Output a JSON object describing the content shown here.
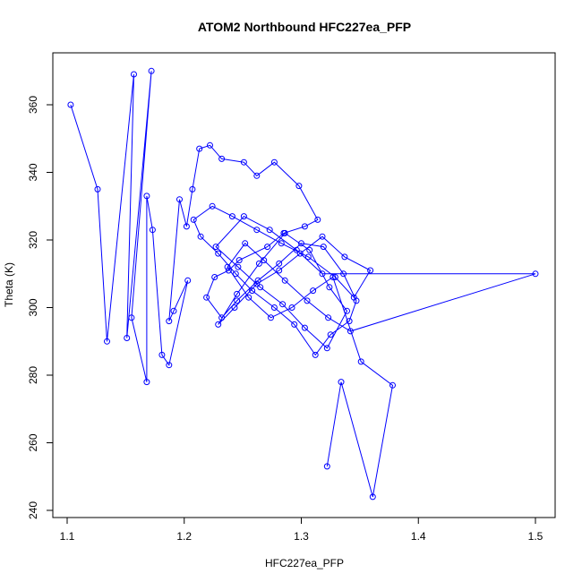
{
  "chart_data": {
    "type": "line",
    "title": "ATOM2 Northbound HFC227ea_PFP",
    "xlabel": "HFC227ea_PFP",
    "ylabel": "Theta (K)",
    "xlim": [
      1.1,
      1.5
    ],
    "ylim": [
      240,
      360
    ],
    "xticks": [
      1.1,
      1.2,
      1.3,
      1.4,
      1.5
    ],
    "xtick_labels": [
      "1.1",
      "1.2",
      "1.3",
      "1.4",
      "1.5"
    ],
    "yticks": [
      240,
      260,
      280,
      300,
      320,
      340,
      360
    ],
    "ytick_labels": [
      "240",
      "260",
      "280",
      "300",
      "320",
      "340",
      "360"
    ],
    "grid": false,
    "series": [
      {
        "color": "#0000ff",
        "marker": "open-circle",
        "x": [
          1.103,
          1.126,
          1.134,
          1.157,
          1.151,
          1.172,
          1.155,
          1.168,
          1.168,
          1.173,
          1.181,
          1.187,
          1.203,
          1.191,
          1.187,
          1.196,
          1.202,
          1.207,
          1.213,
          1.222,
          1.232,
          1.251,
          1.262,
          1.277,
          1.298,
          1.314,
          1.303,
          1.285,
          1.271,
          1.247,
          1.238,
          1.226,
          1.219,
          1.232,
          1.245,
          1.263,
          1.281,
          1.3,
          1.319,
          1.336,
          1.347,
          1.341,
          1.325,
          1.312,
          1.294,
          1.277,
          1.258,
          1.244,
          1.229,
          1.214,
          1.208,
          1.224,
          1.241,
          1.262,
          1.283,
          1.306,
          1.329,
          1.345,
          1.359,
          1.337,
          1.318,
          1.299,
          1.281,
          1.262,
          1.243,
          1.229,
          1.245,
          1.264,
          1.286,
          1.307,
          1.324,
          1.339,
          1.322,
          1.303,
          1.284,
          1.265,
          1.246,
          1.227,
          1.251,
          1.273,
          1.296,
          1.318,
          1.5,
          1.342,
          1.323,
          1.305,
          1.286,
          1.268,
          1.252,
          1.237,
          1.255,
          1.274,
          1.292,
          1.31,
          1.327,
          1.351,
          1.378,
          1.361,
          1.334,
          1.322
        ],
        "y": [
          360,
          335,
          290,
          369,
          291,
          370,
          297,
          278,
          333,
          323,
          286,
          283,
          308,
          299,
          296,
          332,
          324,
          335,
          347,
          348,
          344,
          343,
          339,
          343,
          336,
          326,
          324,
          322,
          318,
          314,
          311,
          309,
          303,
          297,
          302,
          308,
          313,
          319,
          318,
          310,
          302,
          296,
          292,
          286,
          295,
          300,
          305,
          310,
          316,
          321,
          326,
          330,
          327,
          323,
          319,
          315,
          309,
          303,
          311,
          315,
          321,
          316,
          311,
          307,
          300,
          295,
          304,
          313,
          322,
          317,
          306,
          299,
          288,
          294,
          301,
          306,
          312,
          318,
          327,
          323,
          317,
          310,
          310,
          293,
          297,
          302,
          308,
          314,
          319,
          312,
          303,
          297,
          300,
          305,
          309,
          284,
          277,
          244,
          278,
          253
        ]
      }
    ]
  }
}
